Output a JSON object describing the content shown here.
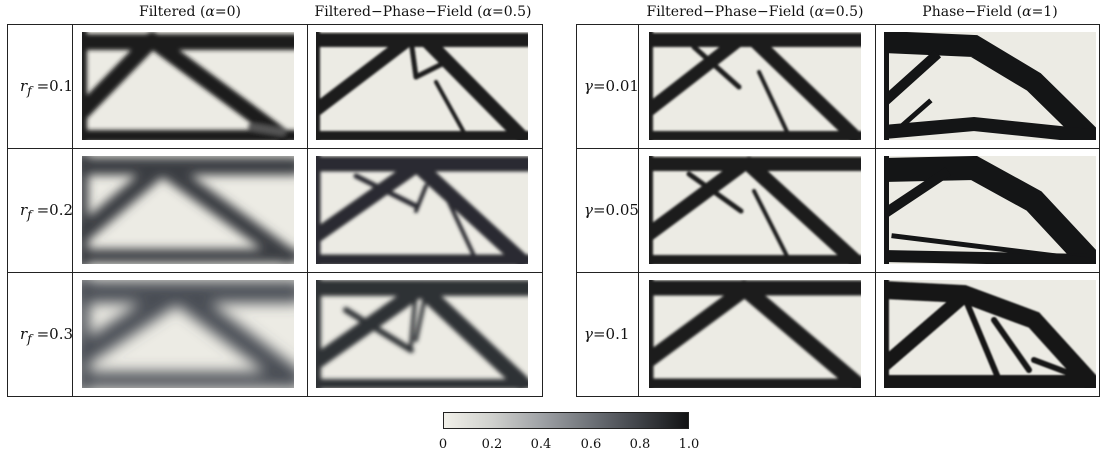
{
  "columns": {
    "c1": {
      "prefix": "Filtered (",
      "var": "α",
      "suffix": "=0)"
    },
    "c2": {
      "prefix": "Filtered−Phase−Field (",
      "var": "α",
      "suffix": "=0.5)"
    },
    "c3": {
      "prefix": "Filtered−Phase−Field (",
      "var": "α",
      "suffix": "=0.5)"
    },
    "c4": {
      "prefix": "Phase−Field (",
      "var": "α",
      "suffix": "=1)"
    }
  },
  "left_rows": [
    {
      "var": "r",
      "sub": "f",
      "value": " =0.1"
    },
    {
      "var": "r",
      "sub": "f",
      "value": " =0.2"
    },
    {
      "var": "r",
      "sub": "f",
      "value": " =0.3"
    }
  ],
  "right_rows": [
    {
      "var": "γ",
      "value": "=0.01"
    },
    {
      "var": "γ",
      "value": "=0.05"
    },
    {
      "var": "γ",
      "value": "=0.1"
    }
  ],
  "colorbar": {
    "ticks": [
      "0",
      "0.2",
      "0.4",
      "0.6",
      "0.8",
      "1.0"
    ],
    "colors": {
      "low": "#f1f0e9",
      "high": "#121314"
    }
  }
}
